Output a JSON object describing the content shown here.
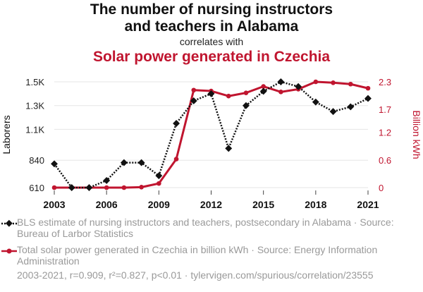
{
  "header": {
    "title_line1": "The number of nursing instructors",
    "title_line2": "and teachers in Alabama",
    "connector": "correlates with",
    "subtitle": "Solar power generated in Czechia"
  },
  "colors": {
    "series1": "#111111",
    "series2": "#c0152f",
    "grid": "#e6e6e6"
  },
  "chart_data": {
    "type": "line",
    "x": [
      2003,
      2004,
      2005,
      2006,
      2007,
      2008,
      2009,
      2010,
      2011,
      2012,
      2013,
      2014,
      2015,
      2016,
      2017,
      2018,
      2019,
      2020,
      2021
    ],
    "xticks": [
      2003,
      2006,
      2009,
      2012,
      2015,
      2018,
      2021
    ],
    "xlim": [
      2003,
      2021
    ],
    "series": [
      {
        "name": "Laborers",
        "axis": "left",
        "style": "dotted",
        "marker": "diamond",
        "values": [
          810,
          610,
          610,
          670,
          820,
          820,
          710,
          1150,
          1340,
          1400,
          940,
          1300,
          1420,
          1500,
          1460,
          1330,
          1250,
          1290,
          1360
        ]
      },
      {
        "name": "Billion kWh",
        "axis": "right",
        "style": "solid",
        "marker": "circle",
        "values": [
          0,
          0,
          0,
          0,
          0,
          0.01,
          0.09,
          0.62,
          2.12,
          2.1,
          1.99,
          2.06,
          2.2,
          2.08,
          2.14,
          2.3,
          2.28,
          2.25,
          2.16
        ]
      }
    ],
    "yleft": {
      "label": "Laborers",
      "ticks": [
        610,
        840,
        1100,
        1300,
        1500
      ],
      "tick_labels": [
        "610",
        "840",
        "1.1K",
        "1.3K",
        "1.5K"
      ],
      "ylim": [
        610,
        1500
      ]
    },
    "yright": {
      "label": "Billion kWh",
      "ticks": [
        0,
        0.6,
        1.2,
        1.7,
        2.3
      ],
      "tick_labels": [
        "0",
        "0.6",
        "1.2",
        "1.7",
        "2.3"
      ],
      "ylim": [
        0,
        2.3
      ]
    }
  },
  "legend": {
    "item1": "BLS estimate of nursing instructors and teachers, postsecondary in Alabama · Source: Bureau of Larbor Statistics",
    "item2": "Total solar power generated in Czechia in billion kWh · Source: Energy Information Administration"
  },
  "footer": "2003-2021, r=0.909, r²=0.827, p<0.01 · tylervigen.com/spurious/correlation/23555"
}
